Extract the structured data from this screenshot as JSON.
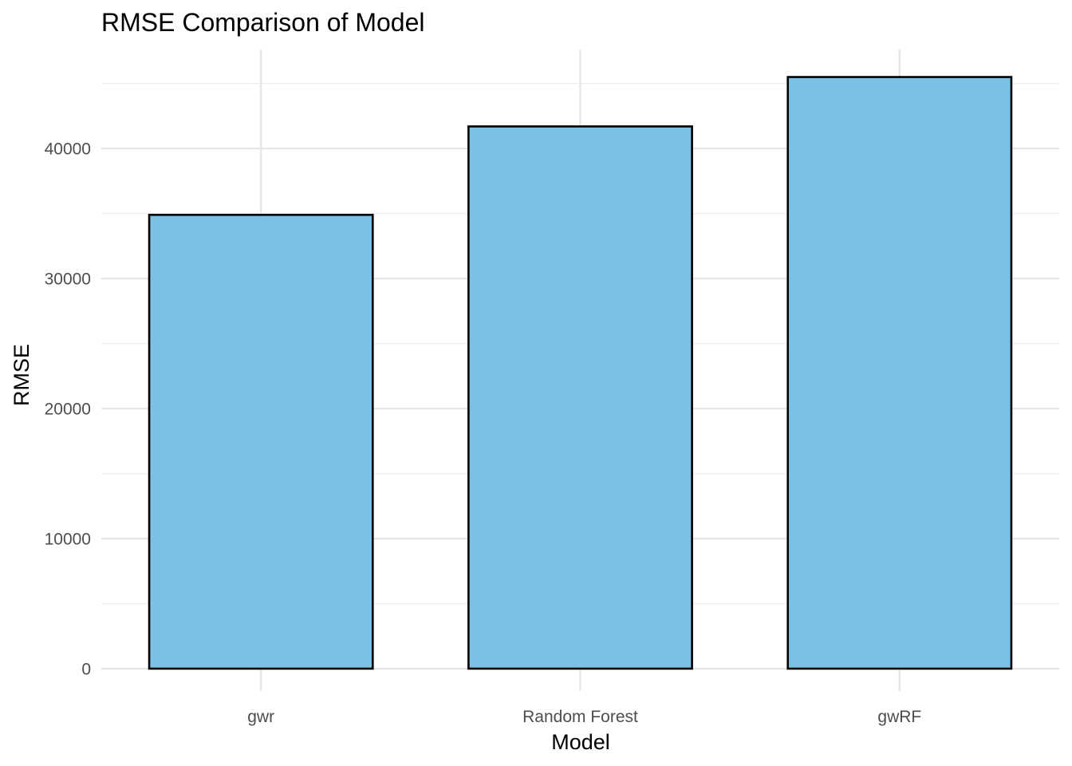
{
  "chart_data": {
    "type": "bar",
    "title": "RMSE Comparison of Model",
    "xlabel": "Model",
    "ylabel": "RMSE",
    "categories": [
      "gwr",
      "Random Forest",
      "gwRF"
    ],
    "values": [
      34900,
      41700,
      45500
    ],
    "ylim": [
      0,
      47000
    ],
    "yticks": [
      0,
      10000,
      20000,
      30000,
      40000
    ],
    "ytick_labels": [
      "0",
      "10000",
      "20000",
      "30000",
      "40000"
    ],
    "grid": true,
    "legend": "none",
    "bar_color": "#7ac1e3",
    "bar_outline": "#000000"
  }
}
